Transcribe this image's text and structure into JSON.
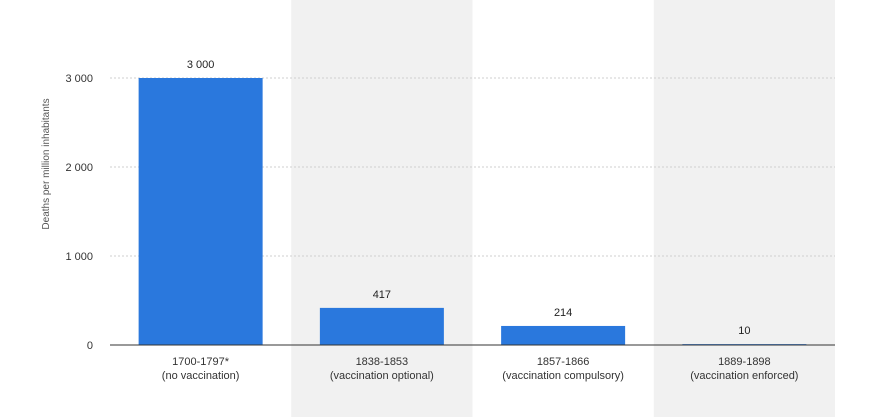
{
  "colors": {
    "bar": "#2a78dd",
    "band": "#f1f1f1",
    "grid": "#cfcfcf",
    "baseline": "#333333"
  },
  "chart_data": {
    "type": "bar",
    "ylabel": "Deaths per million inhabitants",
    "ylim": [
      0,
      3000
    ],
    "yticks": [
      {
        "value": 0,
        "label": "0"
      },
      {
        "value": 1000,
        "label": "1 000"
      },
      {
        "value": 2000,
        "label": "2 000"
      },
      {
        "value": 3000,
        "label": "3 000"
      }
    ],
    "categories": [
      [
        "1700-1797*",
        "(no vaccination)"
      ],
      [
        "1838-1853",
        "(vaccination optional)"
      ],
      [
        "1857-1866",
        "(vaccination compulsory)"
      ],
      [
        "1889-1898",
        "(vaccination enforced)"
      ]
    ],
    "values": [
      3000,
      417,
      214,
      10
    ],
    "data_labels": [
      "3 000",
      "417",
      "214",
      "10"
    ],
    "grid": true
  }
}
